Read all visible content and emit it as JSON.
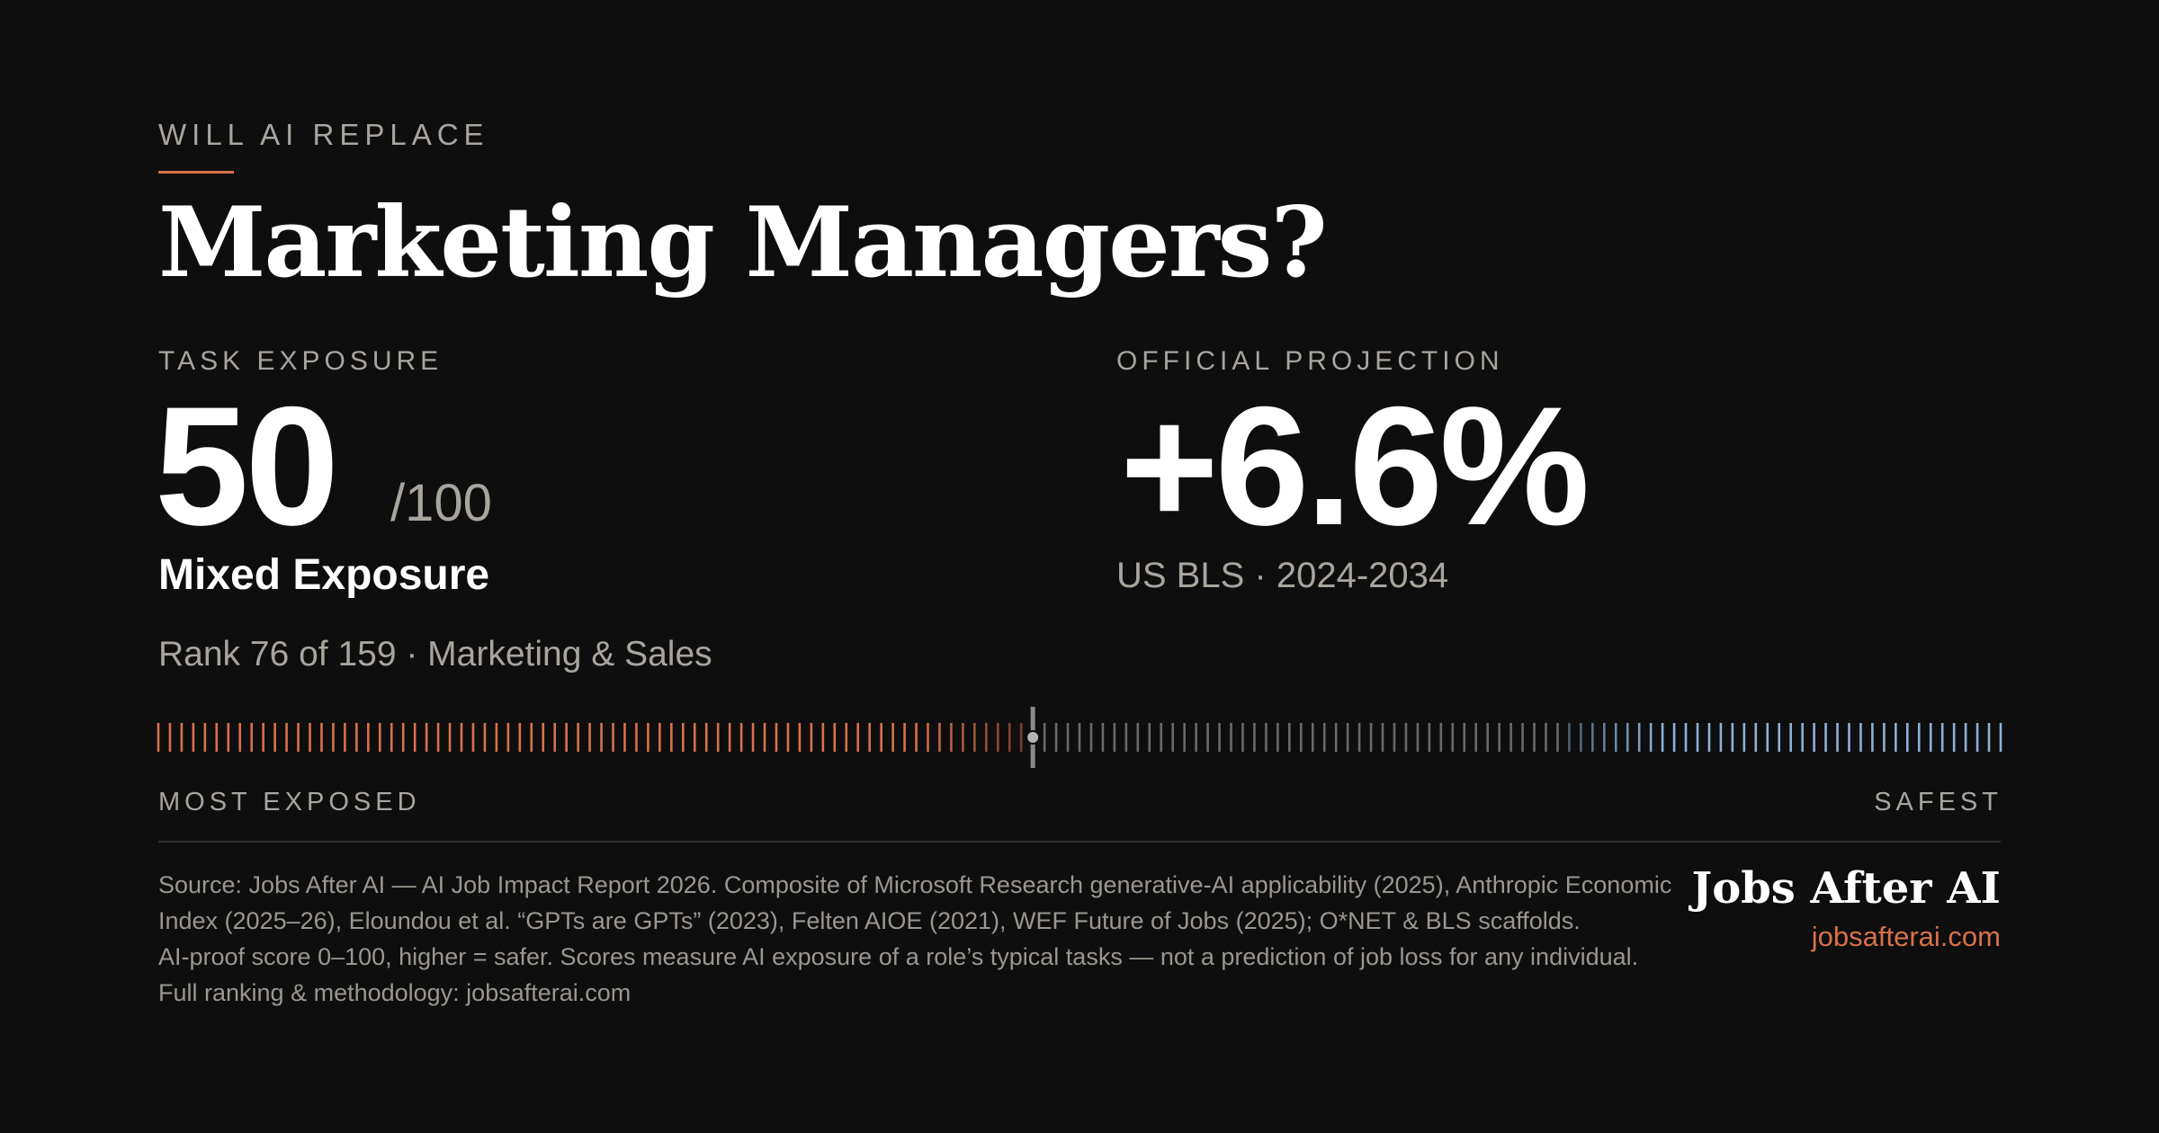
{
  "header": {
    "eyebrow": "WILL AI REPLACE",
    "title": "Marketing Managers?"
  },
  "exposure": {
    "label": "TASK EXPOSURE",
    "score": "50",
    "score_value": 50,
    "out_of": "/100",
    "level": "Mixed Exposure",
    "rank_text": "Rank 76 of 159 · Marketing & Sales"
  },
  "projection": {
    "label": "OFFICIAL PROJECTION",
    "value": "+6.6%",
    "source": "US BLS · 2024-2034"
  },
  "meter": {
    "total": 159,
    "rank": 76,
    "left_label": "MOST EXPOSED",
    "right_label": "SAFEST",
    "colors": {
      "exposed": "#d9714a",
      "neutral": "#6a6a6a",
      "safe": "#8fb0d6",
      "marker": "#8a8a8a"
    }
  },
  "footer": {
    "source_text": "Source: Jobs After AI — AI Job Impact Report 2026. Composite of Microsoft Research generative-AI applicability (2025), Anthropic Economic Index (2025–26), Eloundou et al. “GPTs are GPTs” (2023), Felten AIOE (2021), WEF Future of Jobs (2025); O*NET & BLS scaffolds.",
    "method_text": "AI-proof score 0–100, higher = safer. Scores measure AI exposure of a role’s typical tasks — not a prediction of job loss for any individual. Full ranking & methodology: jobsafterai.com",
    "brand": "Jobs After AI",
    "url": "jobsafterai.com"
  },
  "theme": {
    "background": "#0e0e0e",
    "accent": "#d9714a",
    "muted": "#a9a49e"
  }
}
